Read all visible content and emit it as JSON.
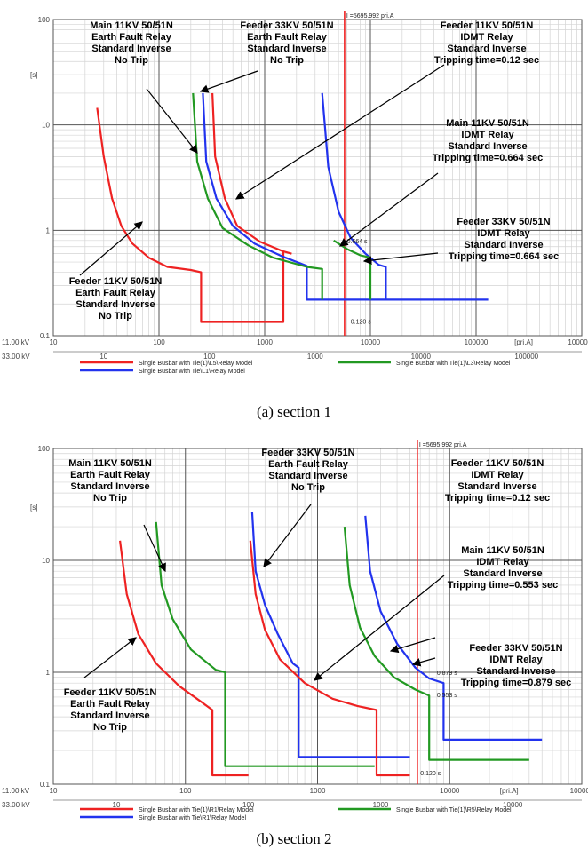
{
  "chart_data": [
    {
      "type": "line",
      "title": "",
      "caption": "(a) section 1",
      "x_scale": "log",
      "y_scale": "log",
      "xlim": [
        10,
        1000000
      ],
      "ylim": [
        0.1,
        100
      ],
      "ylabel": "[s]",
      "xlabel": "[pri.A]",
      "x_ticks": [
        "10",
        "100",
        "1000",
        "10000",
        "100000",
        "1000000"
      ],
      "y_ticks": [
        "100",
        "10",
        "1",
        "0.1"
      ],
      "x_row2_label": "33.00 kV",
      "x_row2_ticks": [
        "10",
        "100",
        "1000",
        "10000",
        "100000"
      ],
      "voltage_label": "11.00 kV",
      "fault_current_label": "I =5695.992 pri.A",
      "fault_current": 5695.992,
      "series": [
        {
          "name": "Single Busbar with Tie(1)\\L5\\Relay Model",
          "color": "#ee2222",
          "points": [
            [
              26,
              14.5
            ],
            [
              30,
              5
            ],
            [
              36,
              2
            ],
            [
              44,
              1.1
            ],
            [
              56,
              0.75
            ],
            [
              80,
              0.55
            ],
            [
              120,
              0.45
            ],
            [
              200,
              0.42
            ],
            [
              250,
              0.4
            ],
            [
              250,
              0.135
            ],
            [
              1500,
              0.135
            ],
            [
              1500,
              0.63
            ]
          ]
        },
        {
          "name": "Single Busbar with Tie\\L1\\Relay Model",
          "color": "#2233ee",
          "points": [
            [
              260,
              20
            ],
            [
              280,
              4.5
            ],
            [
              350,
              2
            ],
            [
              500,
              1.1
            ],
            [
              800,
              0.75
            ],
            [
              1500,
              0.56
            ],
            [
              2500,
              0.46
            ],
            [
              2500,
              0.22
            ],
            [
              130000,
              0.22
            ]
          ]
        },
        {
          "name": "Single Busbar with Tie(1)\\L3\\Relay Model",
          "color": "#229922",
          "points": [
            [
              210,
              20
            ],
            [
              230,
              4.5
            ],
            [
              290,
              2
            ],
            [
              400,
              1.05
            ],
            [
              700,
              0.72
            ],
            [
              1200,
              0.55
            ],
            [
              2500,
              0.45
            ],
            [
              3500,
              0.43
            ],
            [
              3500,
              0.22
            ]
          ]
        },
        {
          "name": "Feeder 33KV (right)",
          "color": "#2233ee",
          "points": [
            [
              3500,
              20
            ],
            [
              4000,
              4
            ],
            [
              5000,
              1.5
            ],
            [
              6500,
              0.85
            ],
            [
              9000,
              0.6
            ],
            [
              12000,
              0.47
            ],
            [
              14000,
              0.45
            ],
            [
              14000,
              0.22
            ]
          ]
        },
        {
          "name": "Feeder 11KV IDMT (right green)",
          "color": "#229922",
          "points": [
            [
              4500,
              0.8
            ],
            [
              6000,
              0.664
            ],
            [
              8000,
              0.58
            ],
            [
              10000,
              0.55
            ],
            [
              10000,
              0.22
            ]
          ]
        },
        {
          "name": "Feeder 11KV IDMT (red)",
          "color": "#ee2222",
          "points": [
            [
              320,
              20
            ],
            [
              340,
              5
            ],
            [
              420,
              2
            ],
            [
              550,
              1.1
            ],
            [
              900,
              0.78
            ],
            [
              1500,
              0.63
            ],
            [
              1800,
              0.6
            ]
          ]
        }
      ],
      "point_labels": [
        {
          "text": "0.664 s",
          "x": 6000,
          "y": 0.75
        },
        {
          "text": "0.120 s",
          "x": 6500,
          "y": 0.13
        }
      ],
      "annotations": [
        {
          "lines": [
            "Main 11KV 50/51N",
            "Earth Fault Relay",
            "Standard Inverse",
            "No Trip"
          ]
        },
        {
          "lines": [
            "Feeder 33KV 50/51N",
            "Earth Fault Relay",
            "Standard Inverse",
            "No Trip"
          ]
        },
        {
          "lines": [
            "Feeder 11KV 50/51N",
            "IDMT Relay",
            "Standard Inverse",
            "Tripping time=0.12 sec"
          ]
        },
        {
          "lines": [
            "Main 11KV 50/51N",
            "IDMT Relay",
            "Standard Inverse",
            "Tripping time=0.664 sec"
          ]
        },
        {
          "lines": [
            "Feeder 33KV 50/51N",
            "IDMT Relay",
            "Standard Inverse",
            "Tripping time=0.664 sec"
          ]
        },
        {
          "lines": [
            "Feeder 11KV 50/51N",
            "Earth Fault Relay",
            "Standard Inverse",
            "No Trip"
          ]
        }
      ],
      "legend": [
        {
          "label": "Single Busbar with Tie(1)\\L5\\Relay Model",
          "color": "#ee2222"
        },
        {
          "label": "Single Busbar with Tie\\L1\\Relay Model",
          "color": "#2233ee"
        },
        {
          "label": "Single Busbar with Tie(1)\\L3\\Relay Model",
          "color": "#229922"
        }
      ]
    },
    {
      "type": "line",
      "title": "",
      "caption": "(b) section 2",
      "x_scale": "log",
      "y_scale": "log",
      "xlim": [
        10,
        100000
      ],
      "ylim": [
        0.1,
        100
      ],
      "ylabel": "[s]",
      "xlabel": "[pri.A]",
      "x_ticks": [
        "10",
        "100",
        "1000",
        "10000",
        "100000"
      ],
      "y_ticks": [
        "100",
        "10",
        "1",
        "0.1"
      ],
      "x_row2_label": "33.00 kV",
      "x_row2_ticks": [
        "10",
        "100",
        "1000",
        "10000"
      ],
      "voltage_label": "11.00 kV",
      "fault_current_label": "I =5695.992 pri.A",
      "fault_current": 5695.992,
      "series": [
        {
          "name": "Single Busbar with Tie(1)\\R1\\Relay Model",
          "color": "#ee2222",
          "points": [
            [
              32,
              15
            ],
            [
              36,
              5
            ],
            [
              44,
              2.2
            ],
            [
              60,
              1.2
            ],
            [
              90,
              0.75
            ],
            [
              130,
              0.55
            ],
            [
              160,
              0.46
            ],
            [
              160,
              0.12
            ],
            [
              300,
              0.12
            ]
          ]
        },
        {
          "name": "Single Busbar with Tie\\R1\\Relay Model",
          "color": "#2233ee",
          "points": [
            [
              320,
              27
            ],
            [
              340,
              8
            ],
            [
              400,
              4
            ],
            [
              500,
              2.2
            ],
            [
              650,
              1.2
            ],
            [
              720,
              1.1
            ],
            [
              720,
              0.175
            ],
            [
              5000,
              0.175
            ]
          ]
        },
        {
          "name": "Single Busbar with Tie(1)\\R5\\Relay Model",
          "color": "#229922",
          "points": [
            [
              60,
              22
            ],
            [
              66,
              6
            ],
            [
              80,
              3
            ],
            [
              110,
              1.6
            ],
            [
              170,
              1.05
            ],
            [
              200,
              1.0
            ],
            [
              200,
              0.145
            ],
            [
              2700,
              0.145
            ]
          ]
        },
        {
          "name": "Feeder 11KV (red right)",
          "color": "#ee2222",
          "points": [
            [
              310,
              15
            ],
            [
              340,
              5
            ],
            [
              400,
              2.4
            ],
            [
              520,
              1.3
            ],
            [
              800,
              0.8
            ],
            [
              1300,
              0.58
            ],
            [
              2000,
              0.5
            ],
            [
              2800,
              0.46
            ],
            [
              2800,
              0.12
            ],
            [
              5000,
              0.12
            ]
          ]
        },
        {
          "name": "Green right",
          "color": "#229922",
          "points": [
            [
              1600,
              20
            ],
            [
              1750,
              6
            ],
            [
              2100,
              2.5
            ],
            [
              2700,
              1.4
            ],
            [
              3800,
              0.9
            ],
            [
              5500,
              0.7
            ],
            [
              7000,
              0.62
            ],
            [
              7000,
              0.165
            ],
            [
              40000,
              0.165
            ]
          ]
        },
        {
          "name": "Blue right",
          "color": "#2233ee",
          "points": [
            [
              2300,
              25
            ],
            [
              2500,
              8
            ],
            [
              3000,
              3.5
            ],
            [
              4000,
              1.8
            ],
            [
              5500,
              1.1
            ],
            [
              7000,
              0.88
            ],
            [
              9000,
              0.8
            ],
            [
              9000,
              0.25
            ],
            [
              50000,
              0.25
            ]
          ]
        }
      ],
      "point_labels": [
        {
          "text": "0.879 s",
          "x": 8000,
          "y": 0.95
        },
        {
          "text": "0.553 s",
          "x": 8000,
          "y": 0.6
        },
        {
          "text": "0.120 s",
          "x": 6000,
          "y": 0.12
        }
      ],
      "annotations": [
        {
          "lines": [
            "Main 11KV 50/51N",
            "Earth Fault Relay",
            "Standard Inverse",
            "No Trip"
          ]
        },
        {
          "lines": [
            "Feeder 33KV 50/51N",
            "Earth Fault Relay",
            "Standard Inverse",
            "No Trip"
          ]
        },
        {
          "lines": [
            "Feeder 11KV 50/51N",
            "IDMT Relay",
            "Standard Inverse",
            "Tripping time=0.12 sec"
          ]
        },
        {
          "lines": [
            "Main 11KV 50/51N",
            "IDMT Relay",
            "Standard Inverse",
            "Tripping time=0.553 sec"
          ]
        },
        {
          "lines": [
            "Feeder 33KV 50/51N",
            "IDMT Relay",
            "Standard Inverse",
            "Tripping time=0.879 sec"
          ]
        },
        {
          "lines": [
            "Feeder 11KV 50/51N",
            "Earth Fault Relay",
            "Standard Inverse",
            "No Trip"
          ]
        }
      ],
      "legend": [
        {
          "label": "Single Busbar with Tie(1)\\R1\\Relay Model",
          "color": "#ee2222"
        },
        {
          "label": "Single Busbar with Tie\\R1\\Relay Model",
          "color": "#2233ee"
        },
        {
          "label": "Single Busbar with Tie(1)\\R5\\Relay Model",
          "color": "#229922"
        }
      ]
    }
  ]
}
